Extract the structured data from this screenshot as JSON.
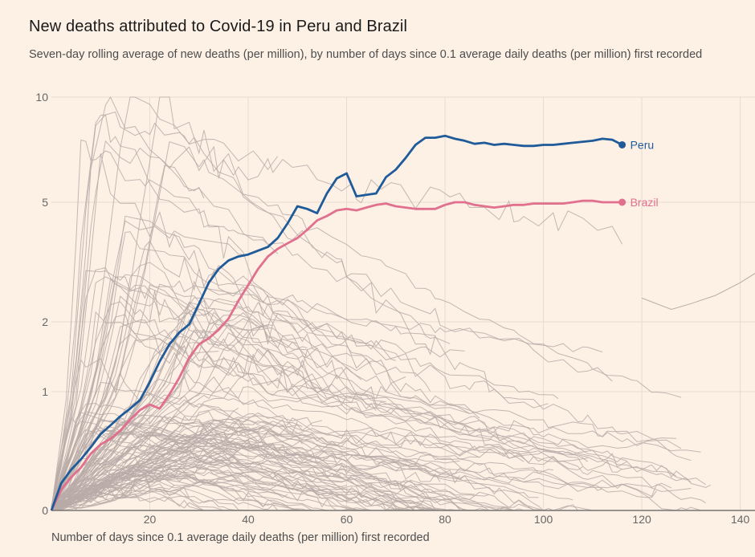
{
  "title": "New deaths attributed to Covid-19 in Peru and Brazil",
  "subtitle": "Seven-day rolling average of new deaths (per million), by number of days since 0.1 average daily deaths (per million) first recorded",
  "chart_data": {
    "type": "line",
    "title": "New deaths attributed to Covid-19 in Peru and Brazil",
    "subtitle": "Seven-day rolling average of new deaths (per million), by number of days since 0.1 average daily deaths (per million) first recorded",
    "xlabel": "Number of days since 0.1 average daily deaths (per million) first recorded",
    "ylabel": "",
    "y_scale": "log",
    "xlim": [
      0,
      143
    ],
    "ylim": [
      0.1,
      10
    ],
    "x_ticks": [
      20,
      40,
      60,
      80,
      100,
      120,
      140
    ],
    "y_ticks": [
      0.1,
      1,
      2,
      5,
      10
    ],
    "y_tick_labels": [
      "0",
      "1",
      "2",
      "5",
      "10"
    ],
    "grid": true,
    "colors": {
      "peru": "#1f5a99",
      "brazil": "#e0708e",
      "other": "#b8aca8",
      "background": "#fdf1e6"
    },
    "series": [
      {
        "name": "Peru",
        "x": [
          0,
          2,
          4,
          6,
          8,
          10,
          12,
          14,
          16,
          18,
          20,
          22,
          24,
          26,
          28,
          30,
          32,
          34,
          36,
          38,
          40,
          42,
          44,
          46,
          48,
          50,
          52,
          54,
          56,
          58,
          60,
          62,
          64,
          66,
          68,
          70,
          72,
          74,
          76,
          78,
          80,
          82,
          84,
          86,
          88,
          90,
          92,
          94,
          96,
          98,
          100,
          102,
          104,
          106,
          108,
          110,
          112,
          114,
          116
        ],
        "values": [
          0.1,
          0.17,
          0.22,
          0.27,
          0.34,
          0.44,
          0.52,
          0.62,
          0.72,
          0.85,
          1.1,
          1.35,
          1.6,
          1.8,
          1.95,
          2.3,
          2.7,
          3.0,
          3.2,
          3.3,
          3.35,
          3.45,
          3.55,
          3.8,
          4.25,
          4.85,
          4.75,
          4.6,
          5.3,
          5.85,
          6.05,
          5.2,
          5.25,
          5.3,
          5.9,
          6.2,
          6.7,
          7.3,
          7.65,
          7.65,
          7.75,
          7.6,
          7.5,
          7.35,
          7.4,
          7.3,
          7.35,
          7.3,
          7.25,
          7.25,
          7.3,
          7.3,
          7.35,
          7.4,
          7.45,
          7.5,
          7.6,
          7.55,
          7.3
        ]
      },
      {
        "name": "Brazil",
        "x": [
          0,
          2,
          4,
          6,
          8,
          10,
          12,
          14,
          16,
          18,
          20,
          22,
          24,
          26,
          28,
          30,
          32,
          34,
          36,
          38,
          40,
          42,
          44,
          46,
          48,
          50,
          52,
          54,
          56,
          58,
          60,
          62,
          64,
          66,
          68,
          70,
          72,
          74,
          76,
          78,
          80,
          82,
          84,
          86,
          88,
          90,
          92,
          94,
          96,
          98,
          100,
          102,
          104,
          106,
          108,
          110,
          112,
          114,
          116
        ],
        "values": [
          0.1,
          0.15,
          0.19,
          0.23,
          0.3,
          0.36,
          0.4,
          0.47,
          0.58,
          0.7,
          0.78,
          0.72,
          0.95,
          1.15,
          1.4,
          1.6,
          1.7,
          1.85,
          2.05,
          2.35,
          2.65,
          3.0,
          3.3,
          3.5,
          3.65,
          3.8,
          4.05,
          4.35,
          4.5,
          4.7,
          4.75,
          4.7,
          4.8,
          4.9,
          4.95,
          4.85,
          4.8,
          4.75,
          4.75,
          4.75,
          4.9,
          5.0,
          5.0,
          4.9,
          4.85,
          4.8,
          4.85,
          4.9,
          4.9,
          4.95,
          4.95,
          4.95,
          4.95,
          5.0,
          5.05,
          5.05,
          5.0,
          5.0,
          5.0
        ]
      }
    ]
  }
}
